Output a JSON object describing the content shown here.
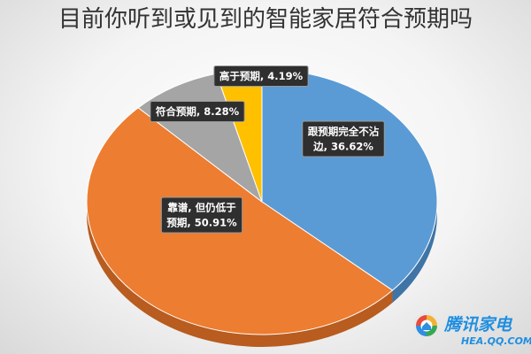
{
  "chart_data": {
    "type": "pie",
    "title": "目前你听到或见到的智能家居符合预期吗",
    "slices": [
      {
        "label_lines": [
          "跟预期完全不沾",
          "边, 36.62%"
        ],
        "value": 36.62,
        "color": "#5b9bd5",
        "side_color": "#3f74a6"
      },
      {
        "label_lines": [
          "靠谱, 但仍低于",
          "预期, 50.91%"
        ],
        "value": 50.91,
        "color": "#ed7d31",
        "side_color": "#b85c1f"
      },
      {
        "label_lines": [
          "符合预期, 8.28%"
        ],
        "value": 8.28,
        "color": "#a5a5a5",
        "side_color": "#7c7c7c"
      },
      {
        "label_lines": [
          "高于预期, 4.19%"
        ],
        "value": 4.19,
        "color": "#ffc000",
        "side_color": "#c99400"
      }
    ]
  },
  "logo": {
    "name": "腾讯家电",
    "url": "HEA.QQ.COM",
    "icon": "qq-home-logo-icon"
  }
}
